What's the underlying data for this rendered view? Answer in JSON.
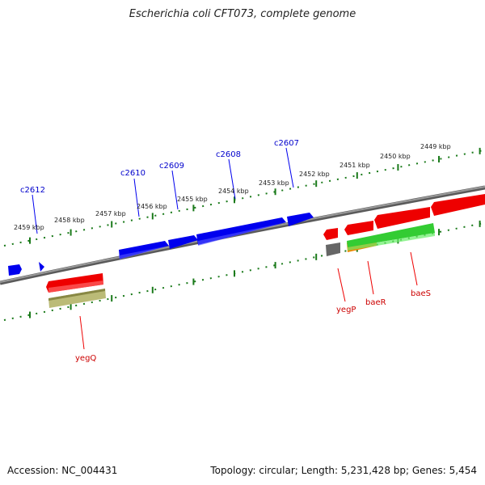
{
  "header": {
    "title": "Escherichia coli CFT073, complete genome"
  },
  "footer": {
    "accession": "Accession: NC_004431",
    "topology": "Topology: circular; Length: 5,231,428 bp; Genes: 5,454"
  },
  "colors": {
    "background": "#ffffff",
    "backbone": "#7a7a7a",
    "ruler_ticks": "#1a7a1a",
    "forward_gene": "#0000ee",
    "reverse_gene": "#ee0000",
    "cds_green": "#33cc33",
    "cds_orange": "#ee8800",
    "cds_olive": "#bbbb77",
    "misc_gray": "#666666",
    "label_text": "#222222"
  },
  "ruler_labels": [
    "2459 kbp",
    "2458 kbp",
    "2457 kbp",
    "2456 kbp",
    "2455 kbp",
    "2454 kbp",
    "2453 kbp",
    "2452 kbp",
    "2451 kbp",
    "2450 kbp",
    "2449 kbp"
  ],
  "forward_gene_labels": [
    "c2612",
    "c2610",
    "c2609",
    "c2608",
    "c2607"
  ],
  "reverse_gene_labels": [
    "yegQ",
    "yegP",
    "baeR",
    "baeS"
  ]
}
